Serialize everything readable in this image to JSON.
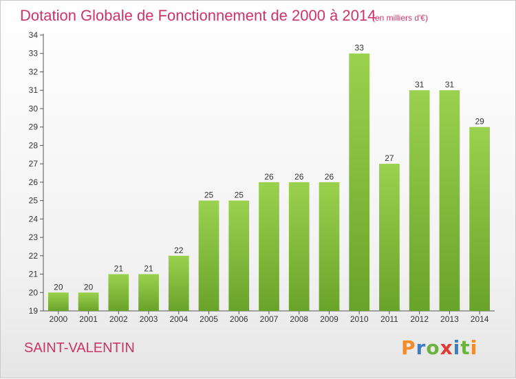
{
  "chart_data": {
    "type": "bar",
    "title": "Dotation Globale de Fonctionnement de 2000 à 2014",
    "subtitle": "(en milliers d'€)",
    "categories": [
      "2000",
      "2001",
      "2002",
      "2003",
      "2004",
      "2005",
      "2006",
      "2007",
      "2008",
      "2009",
      "2010",
      "2011",
      "2012",
      "2013",
      "2014"
    ],
    "values": [
      20,
      20,
      21,
      21,
      22,
      25,
      25,
      26,
      26,
      26,
      33,
      27,
      31,
      31,
      29
    ],
    "ylim": [
      19,
      34
    ],
    "yticks": [
      19,
      20,
      21,
      22,
      23,
      24,
      25,
      26,
      27,
      28,
      29,
      30,
      31,
      32,
      33,
      34
    ],
    "grid": false,
    "bar_color": "#8cc63f",
    "bar_color_dark": "#6aa32a"
  },
  "footer": {
    "place": "SAINT-VALENTIN"
  },
  "logo": {
    "letters": [
      "P",
      "r",
      "o",
      "x",
      "i",
      "t",
      "i"
    ],
    "colors": [
      "#f28c28",
      "#3a7fc1",
      "#6bb33e",
      "#e03c31",
      "#3a7fc1",
      "#6bb33e",
      "#f28c28"
    ]
  }
}
